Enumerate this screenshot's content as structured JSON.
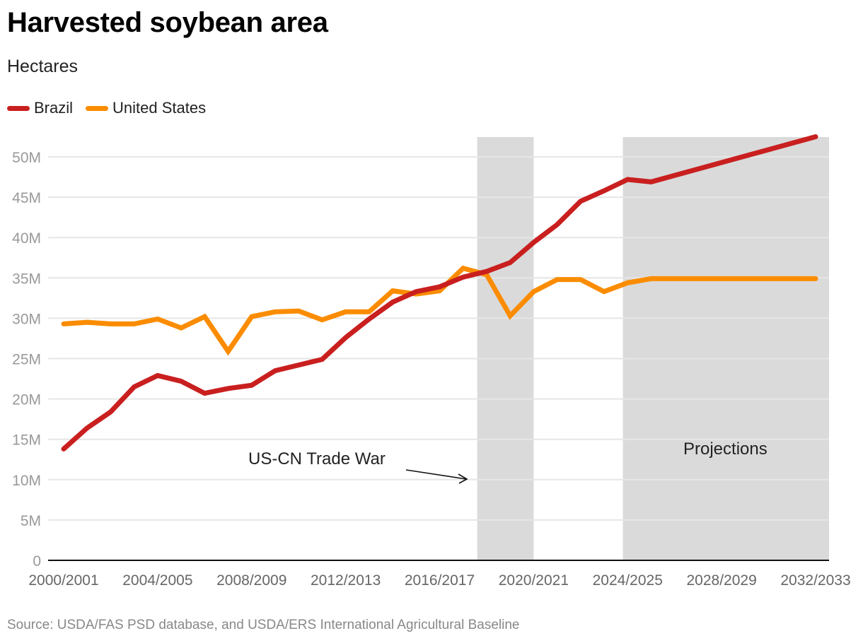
{
  "chart_data": {
    "type": "line",
    "title": "Harvested soybean area",
    "subtitle": "Hectares",
    "xlabel": "",
    "ylabel": "",
    "ylim": [
      0,
      52.5
    ],
    "y_unit": "M hectares",
    "y_ticks": [
      {
        "value": 0,
        "label": "0"
      },
      {
        "value": 5,
        "label": "5M"
      },
      {
        "value": 10,
        "label": "10M"
      },
      {
        "value": 15,
        "label": "15M"
      },
      {
        "value": 20,
        "label": "20M"
      },
      {
        "value": 25,
        "label": "25M"
      },
      {
        "value": 30,
        "label": "30M"
      },
      {
        "value": 35,
        "label": "35M"
      },
      {
        "value": 40,
        "label": "40M"
      },
      {
        "value": 45,
        "label": "45M"
      },
      {
        "value": 50,
        "label": "50M"
      }
    ],
    "grid": true,
    "legend_position": "top-left",
    "x": [
      "2000/2001",
      "2001/2002",
      "2002/2003",
      "2003/2004",
      "2004/2005",
      "2005/2006",
      "2006/2007",
      "2007/2008",
      "2008/2009",
      "2009/2010",
      "2010/2011",
      "2011/2012",
      "2012/2013",
      "2013/2014",
      "2014/2015",
      "2015/2016",
      "2016/2017",
      "2017/2018",
      "2018/2019",
      "2019/2020",
      "2020/2021",
      "2021/2022",
      "2022/2023",
      "2023/2024",
      "2024/2025",
      "2025/2026",
      "2026/2027",
      "2027/2028",
      "2028/2029",
      "2029/2030",
      "2030/2031",
      "2031/2032",
      "2032/2033"
    ],
    "x_tick_labels": [
      "2000/2001",
      "2004/2005",
      "2008/2009",
      "2012/2013",
      "2016/2017",
      "2020/2021",
      "2024/2025",
      "2028/2029",
      "2032/2033"
    ],
    "series": [
      {
        "name": "Brazil",
        "color": "#c91f1f",
        "values": [
          13.8,
          16.4,
          18.4,
          21.5,
          22.9,
          22.2,
          20.7,
          21.3,
          21.7,
          23.5,
          24.2,
          24.9,
          27.6,
          29.9,
          32.0,
          33.3,
          33.9,
          35.1,
          35.8,
          36.9,
          39.4,
          41.6,
          44.5,
          45.8,
          47.2,
          46.9,
          47.7,
          48.5,
          49.3,
          50.1,
          50.9,
          51.7,
          52.5
        ]
      },
      {
        "name": "United States",
        "color": "#fb8c00",
        "values": [
          29.3,
          29.5,
          29.3,
          29.3,
          29.9,
          28.8,
          30.2,
          25.9,
          30.2,
          30.8,
          30.9,
          29.8,
          30.8,
          30.8,
          33.4,
          33.0,
          33.4,
          36.2,
          35.4,
          30.3,
          33.3,
          34.8,
          34.8,
          33.3,
          34.4,
          34.9,
          34.9,
          34.9,
          34.9,
          34.9,
          34.9,
          34.9,
          34.9
        ]
      }
    ],
    "shaded_regions": [
      {
        "label": "US-CN Trade War",
        "x_start": 17.6,
        "x_end": 20.0
      },
      {
        "label": "Projections",
        "x_start": 23.8,
        "x_end": 32.6
      }
    ],
    "annotations": [
      {
        "text": "US-CN Trade War",
        "type": "arrow"
      },
      {
        "text": "Projections",
        "type": "label"
      }
    ],
    "source": "Source: USDA/FAS PSD database, and USDA/ERS International Agricultural Baseline"
  }
}
